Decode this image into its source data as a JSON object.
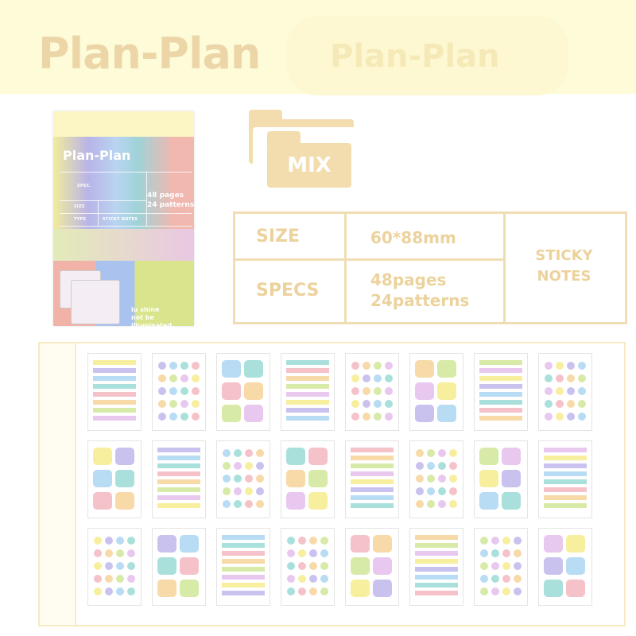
{
  "header": {
    "title": "Plan-Plan",
    "ghost_text": "Plan-Plan"
  },
  "package": {
    "title": "Plan-Plan",
    "info_line1": "48 pages",
    "info_line2": "24 patterns",
    "labels": [
      "SPEC.",
      "SIZE",
      "TYPE",
      "STICKY NOTES"
    ],
    "footer_line1": "iu shine",
    "footer_line2": "not be illuminated."
  },
  "folder_label": "MIX",
  "specs": {
    "size_label": "SIZE",
    "size_value": "60*88mm",
    "specs_label": "SPECS",
    "pages": "48pages",
    "patterns": "24patterns",
    "type_line1": "STICKY",
    "type_line2": "NOTES"
  },
  "colors": {
    "accent": "#ecd29c",
    "header_bg": "#fefbd8",
    "pastels": [
      "#f7ef9e",
      "#c9c2ef",
      "#b7dcf3",
      "#a9e0dc",
      "#f5c2c9",
      "#f8d9a8",
      "#d8eaa8",
      "#e8c8ef"
    ]
  },
  "thumbnails_count": 24
}
